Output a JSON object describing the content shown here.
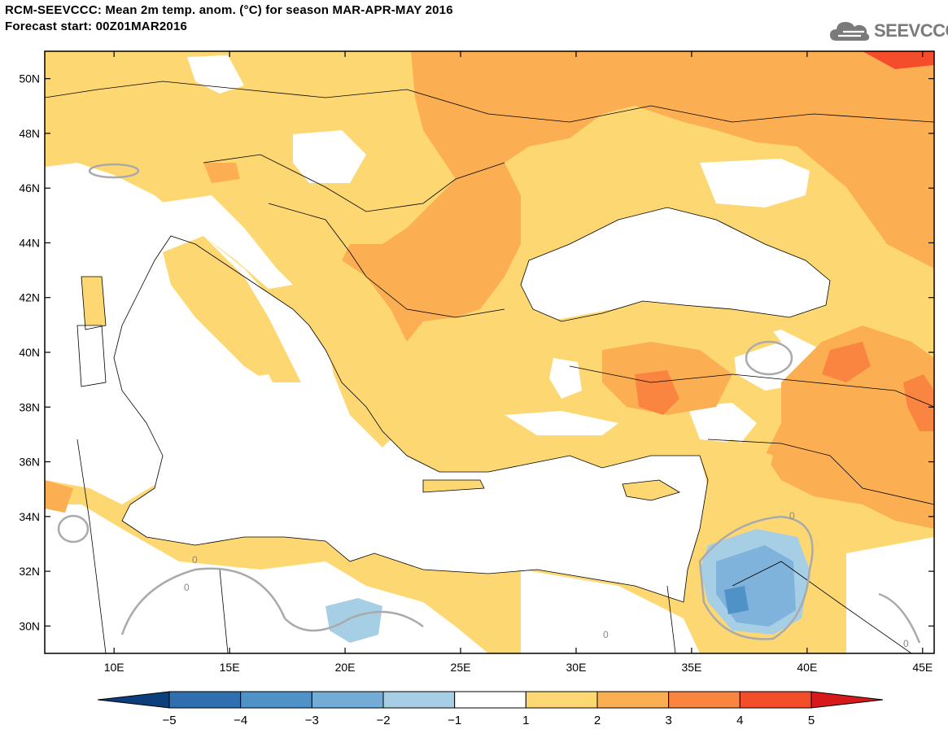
{
  "header": {
    "title_line1": "RCM-SEEVCCC: Mean 2m temp. anom. (°C) for season MAR-APR-MAY 2016",
    "title_line2": "Forecast start: 00Z01MAR2016"
  },
  "logo": {
    "text": "SEEVCCC",
    "icon": "cloud-logo-icon"
  },
  "map": {
    "lon_ticks": [
      "10E",
      "15E",
      "20E",
      "25E",
      "30E",
      "35E",
      "40E",
      "45E"
    ],
    "lat_ticks": [
      "50N",
      "48N",
      "46N",
      "44N",
      "42N",
      "40N",
      "38N",
      "36N",
      "34N",
      "32N",
      "30N"
    ],
    "lon_range": [
      7,
      45.5
    ],
    "lat_range": [
      29,
      51
    ],
    "contour_label": "0",
    "colors": {
      "land_pos1": "#fdd872",
      "land_pos2": "#fcae52",
      "land_pos3": "#fa8540",
      "land_pos4": "#f44d2c",
      "neg1": "#a6cfe6",
      "neg2": "#7fb3dc",
      "neg3": "#4f92c8",
      "contour": "#aaaaaa",
      "border": "#000000"
    }
  },
  "colorbar": {
    "labels": [
      "−5",
      "−4",
      "−3",
      "−2",
      "−1",
      "1",
      "2",
      "3",
      "4",
      "5"
    ],
    "colors": [
      "#0b3e7b",
      "#2f6faf",
      "#4f92c8",
      "#74acd8",
      "#a6cfe6",
      "#ffffff",
      "#fdd872",
      "#fcae52",
      "#fa8540",
      "#f44d2c",
      "#d7191c"
    ]
  }
}
